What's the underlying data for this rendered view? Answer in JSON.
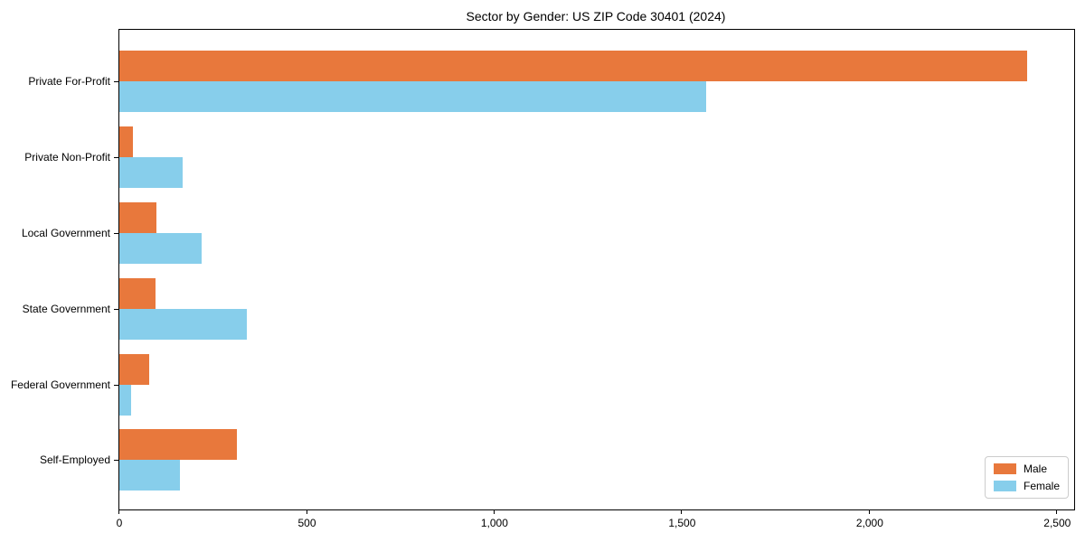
{
  "chart_data": {
    "type": "bar",
    "orientation": "horizontal",
    "title": "Sector by Gender: US ZIP Code 30401 (2024)",
    "categories": [
      "Private For-Profit",
      "Private Non-Profit",
      "Local Government",
      "State Government",
      "Federal Government",
      "Self-Employed"
    ],
    "series": [
      {
        "name": "Male",
        "color": "#e8783c",
        "values": [
          2420,
          36,
          99,
          96,
          80,
          313
        ]
      },
      {
        "name": "Female",
        "color": "#87ceeb",
        "values": [
          1565,
          168,
          220,
          340,
          32,
          161
        ]
      }
    ],
    "xlabel": "",
    "ylabel": "",
    "x_ticks": [
      "0",
      "500",
      "1,000",
      "1,500",
      "2,000",
      "2,500"
    ],
    "x_tick_values": [
      0,
      500,
      1000,
      1500,
      2000,
      2500
    ],
    "xlim": [
      0,
      2545
    ],
    "grid": false,
    "legend_position": "lower right",
    "axis_color": "#000000",
    "background_color": "#ffffff"
  }
}
